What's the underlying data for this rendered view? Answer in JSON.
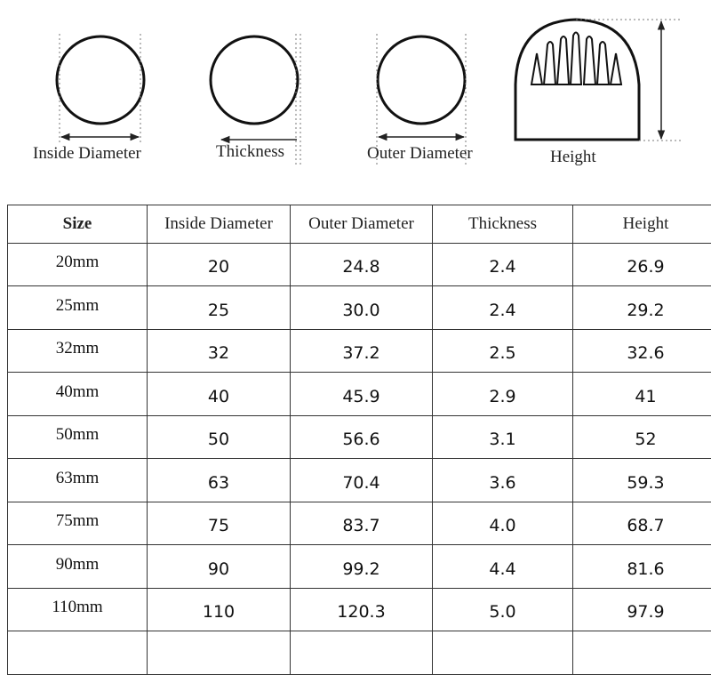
{
  "diagram_labels": {
    "inside_diameter": "Inside Diameter",
    "thickness": "Thickness",
    "outer_diameter": "Outer Diameter",
    "height": "Height"
  },
  "table": {
    "headers": [
      "Size",
      "Inside Diameter",
      "Outer Diameter",
      "Thickness",
      "Height"
    ],
    "rows": [
      [
        "20mm",
        "20",
        "24.8",
        "2.4",
        "26.9"
      ],
      [
        "25mm",
        "25",
        "30.0",
        "2.4",
        "29.2"
      ],
      [
        "32mm",
        "32",
        "37.2",
        "2.5",
        "32.6"
      ],
      [
        "40mm",
        "40",
        "45.9",
        "2.9",
        "41"
      ],
      [
        "50mm",
        "50",
        "56.6",
        "3.1",
        "52"
      ],
      [
        "63mm",
        "63",
        "70.4",
        "3.6",
        "59.3"
      ],
      [
        "75mm",
        "75",
        "83.7",
        "4.0",
        "68.7"
      ],
      [
        "90mm",
        "90",
        "99.2",
        "4.4",
        "81.6"
      ],
      [
        "110mm",
        "110",
        "120.3",
        "5.0",
        "97.9"
      ],
      [
        "",
        "",
        "",
        "",
        ""
      ]
    ]
  }
}
